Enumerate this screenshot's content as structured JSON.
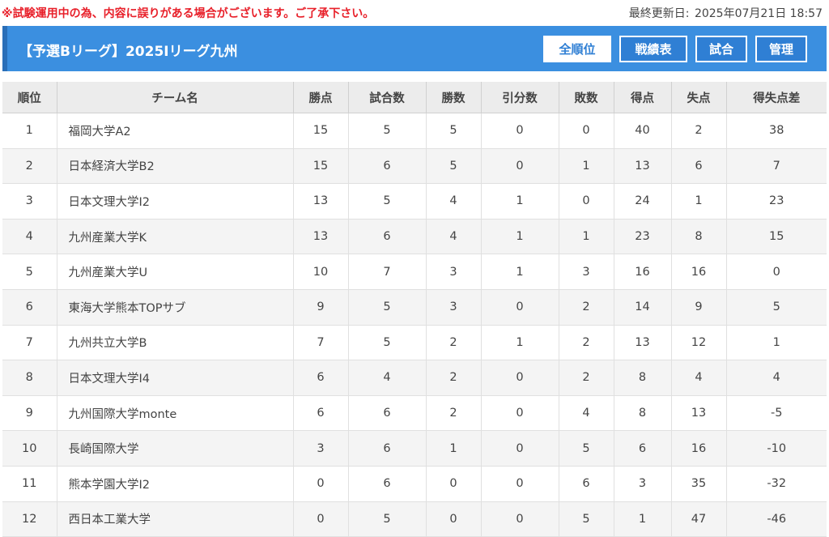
{
  "notice": "※試験運用中の為、内容に誤りがある場合がございます。ご了承下さい。",
  "updated": {
    "label": "最終更新日:",
    "datetime": "2025年07月21日 18:57"
  },
  "league_title": "【予選Bリーグ】2025Iリーグ九州",
  "tabs": [
    {
      "label": "全順位",
      "active": true
    },
    {
      "label": "戦績表",
      "active": false
    },
    {
      "label": "試合",
      "active": false
    },
    {
      "label": "管理",
      "active": false
    }
  ],
  "columns": [
    "順位",
    "チーム名",
    "勝点",
    "試合数",
    "勝数",
    "引分数",
    "敗数",
    "得点",
    "失点",
    "得失点差"
  ],
  "rows": [
    [
      "1",
      "福岡大学A2",
      "15",
      "5",
      "5",
      "0",
      "0",
      "40",
      "2",
      "38"
    ],
    [
      "2",
      "日本経済大学B2",
      "15",
      "6",
      "5",
      "0",
      "1",
      "13",
      "6",
      "7"
    ],
    [
      "3",
      "日本文理大学I2",
      "13",
      "5",
      "4",
      "1",
      "0",
      "24",
      "1",
      "23"
    ],
    [
      "4",
      "九州産業大学K",
      "13",
      "6",
      "4",
      "1",
      "1",
      "23",
      "8",
      "15"
    ],
    [
      "5",
      "九州産業大学U",
      "10",
      "7",
      "3",
      "1",
      "3",
      "16",
      "16",
      "0"
    ],
    [
      "6",
      "東海大学熊本TOPサブ",
      "9",
      "5",
      "3",
      "0",
      "2",
      "14",
      "9",
      "5"
    ],
    [
      "7",
      "九州共立大学B",
      "7",
      "5",
      "2",
      "1",
      "2",
      "13",
      "12",
      "1"
    ],
    [
      "8",
      "日本文理大学I4",
      "6",
      "4",
      "2",
      "0",
      "2",
      "8",
      "4",
      "4"
    ],
    [
      "9",
      "九州国際大学monte",
      "6",
      "6",
      "2",
      "0",
      "4",
      "8",
      "13",
      "-5"
    ],
    [
      "10",
      "長崎国際大学",
      "3",
      "6",
      "1",
      "0",
      "5",
      "6",
      "16",
      "-10"
    ],
    [
      "11",
      "熊本学園大学I2",
      "0",
      "6",
      "0",
      "0",
      "6",
      "3",
      "35",
      "-32"
    ],
    [
      "12",
      "西日本工業大学",
      "0",
      "5",
      "0",
      "0",
      "5",
      "1",
      "47",
      "-46"
    ]
  ]
}
